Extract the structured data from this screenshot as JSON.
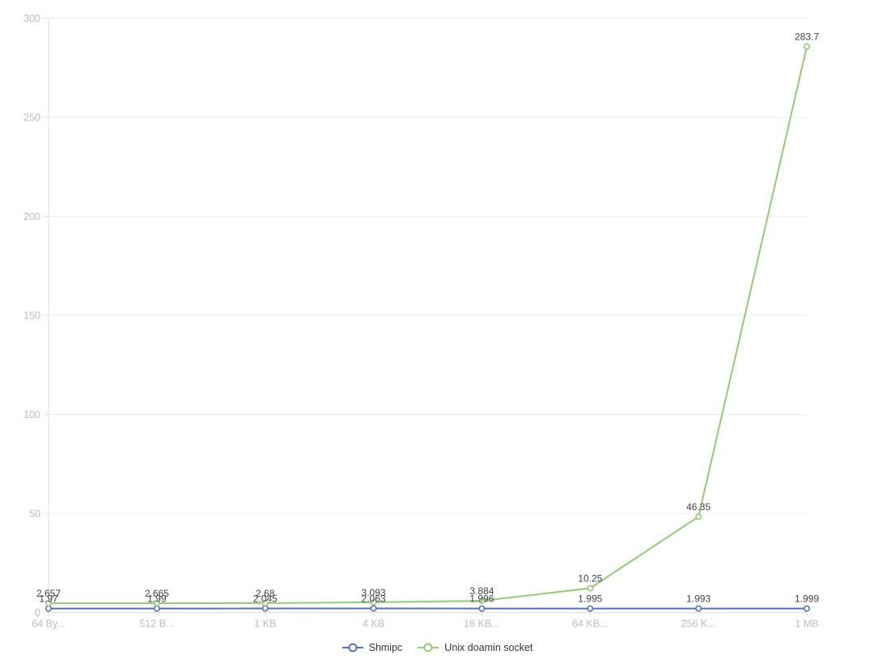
{
  "chart_data": {
    "type": "line",
    "stacked": true,
    "title": "",
    "xlabel": "",
    "ylabel": "",
    "categories": [
      "64 By...",
      "512 B...",
      "1 KB",
      "4 KB",
      "16 KB...",
      "64 KB...",
      "256 K...",
      "1 MB"
    ],
    "series": [
      {
        "name": "Shmipc",
        "color": "#5470c6",
        "values": [
          1.97,
          1.99,
          2.045,
          2.063,
          1.996,
          1.995,
          1.993,
          1.999
        ]
      },
      {
        "name": "Unix doamin socket",
        "color": "#91cc75",
        "values": [
          2.657,
          2.665,
          2.68,
          3.093,
          3.884,
          10.25,
          46.35,
          283.7
        ]
      }
    ],
    "ylim": [
      0,
      300
    ],
    "yticks": [
      0,
      50,
      100,
      150,
      200,
      250,
      300
    ],
    "grid": true,
    "legend_position": "bottom",
    "colors": {
      "background": "#ffffff",
      "grid": "#ededed",
      "axis_line": "#dddddd",
      "axis_label": "#bdbdbd",
      "data_label": "#404040",
      "legend_text": "#333333",
      "point_fill": "#ffffff"
    }
  }
}
